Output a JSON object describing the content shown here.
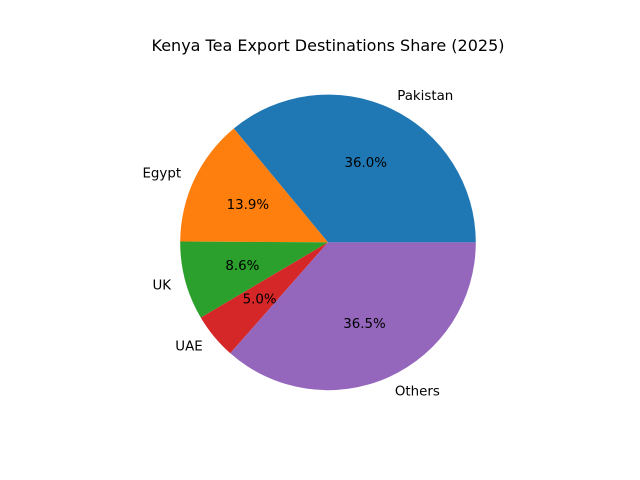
{
  "chart_data": {
    "type": "pie",
    "title": "Kenya Tea Export Destinations Share (2025)",
    "labels": [
      "Pakistan",
      "Egypt",
      "UK",
      "UAE",
      "Others"
    ],
    "values": [
      36.0,
      13.9,
      8.6,
      5.0,
      36.5
    ],
    "pct_labels": [
      "36.0%",
      "13.9%",
      "8.6%",
      "5.0%",
      "36.5%"
    ],
    "colors": [
      "#1f77b4",
      "#ff7f0e",
      "#2ca02c",
      "#d62728",
      "#9467bd"
    ],
    "start_angle_deg": 0,
    "direction": "counterclockwise",
    "label_radius_ratio": 1.1,
    "pct_radius_ratio": 0.6,
    "legend": "none",
    "background_color": "#ffffff",
    "text_color": "#000000"
  }
}
